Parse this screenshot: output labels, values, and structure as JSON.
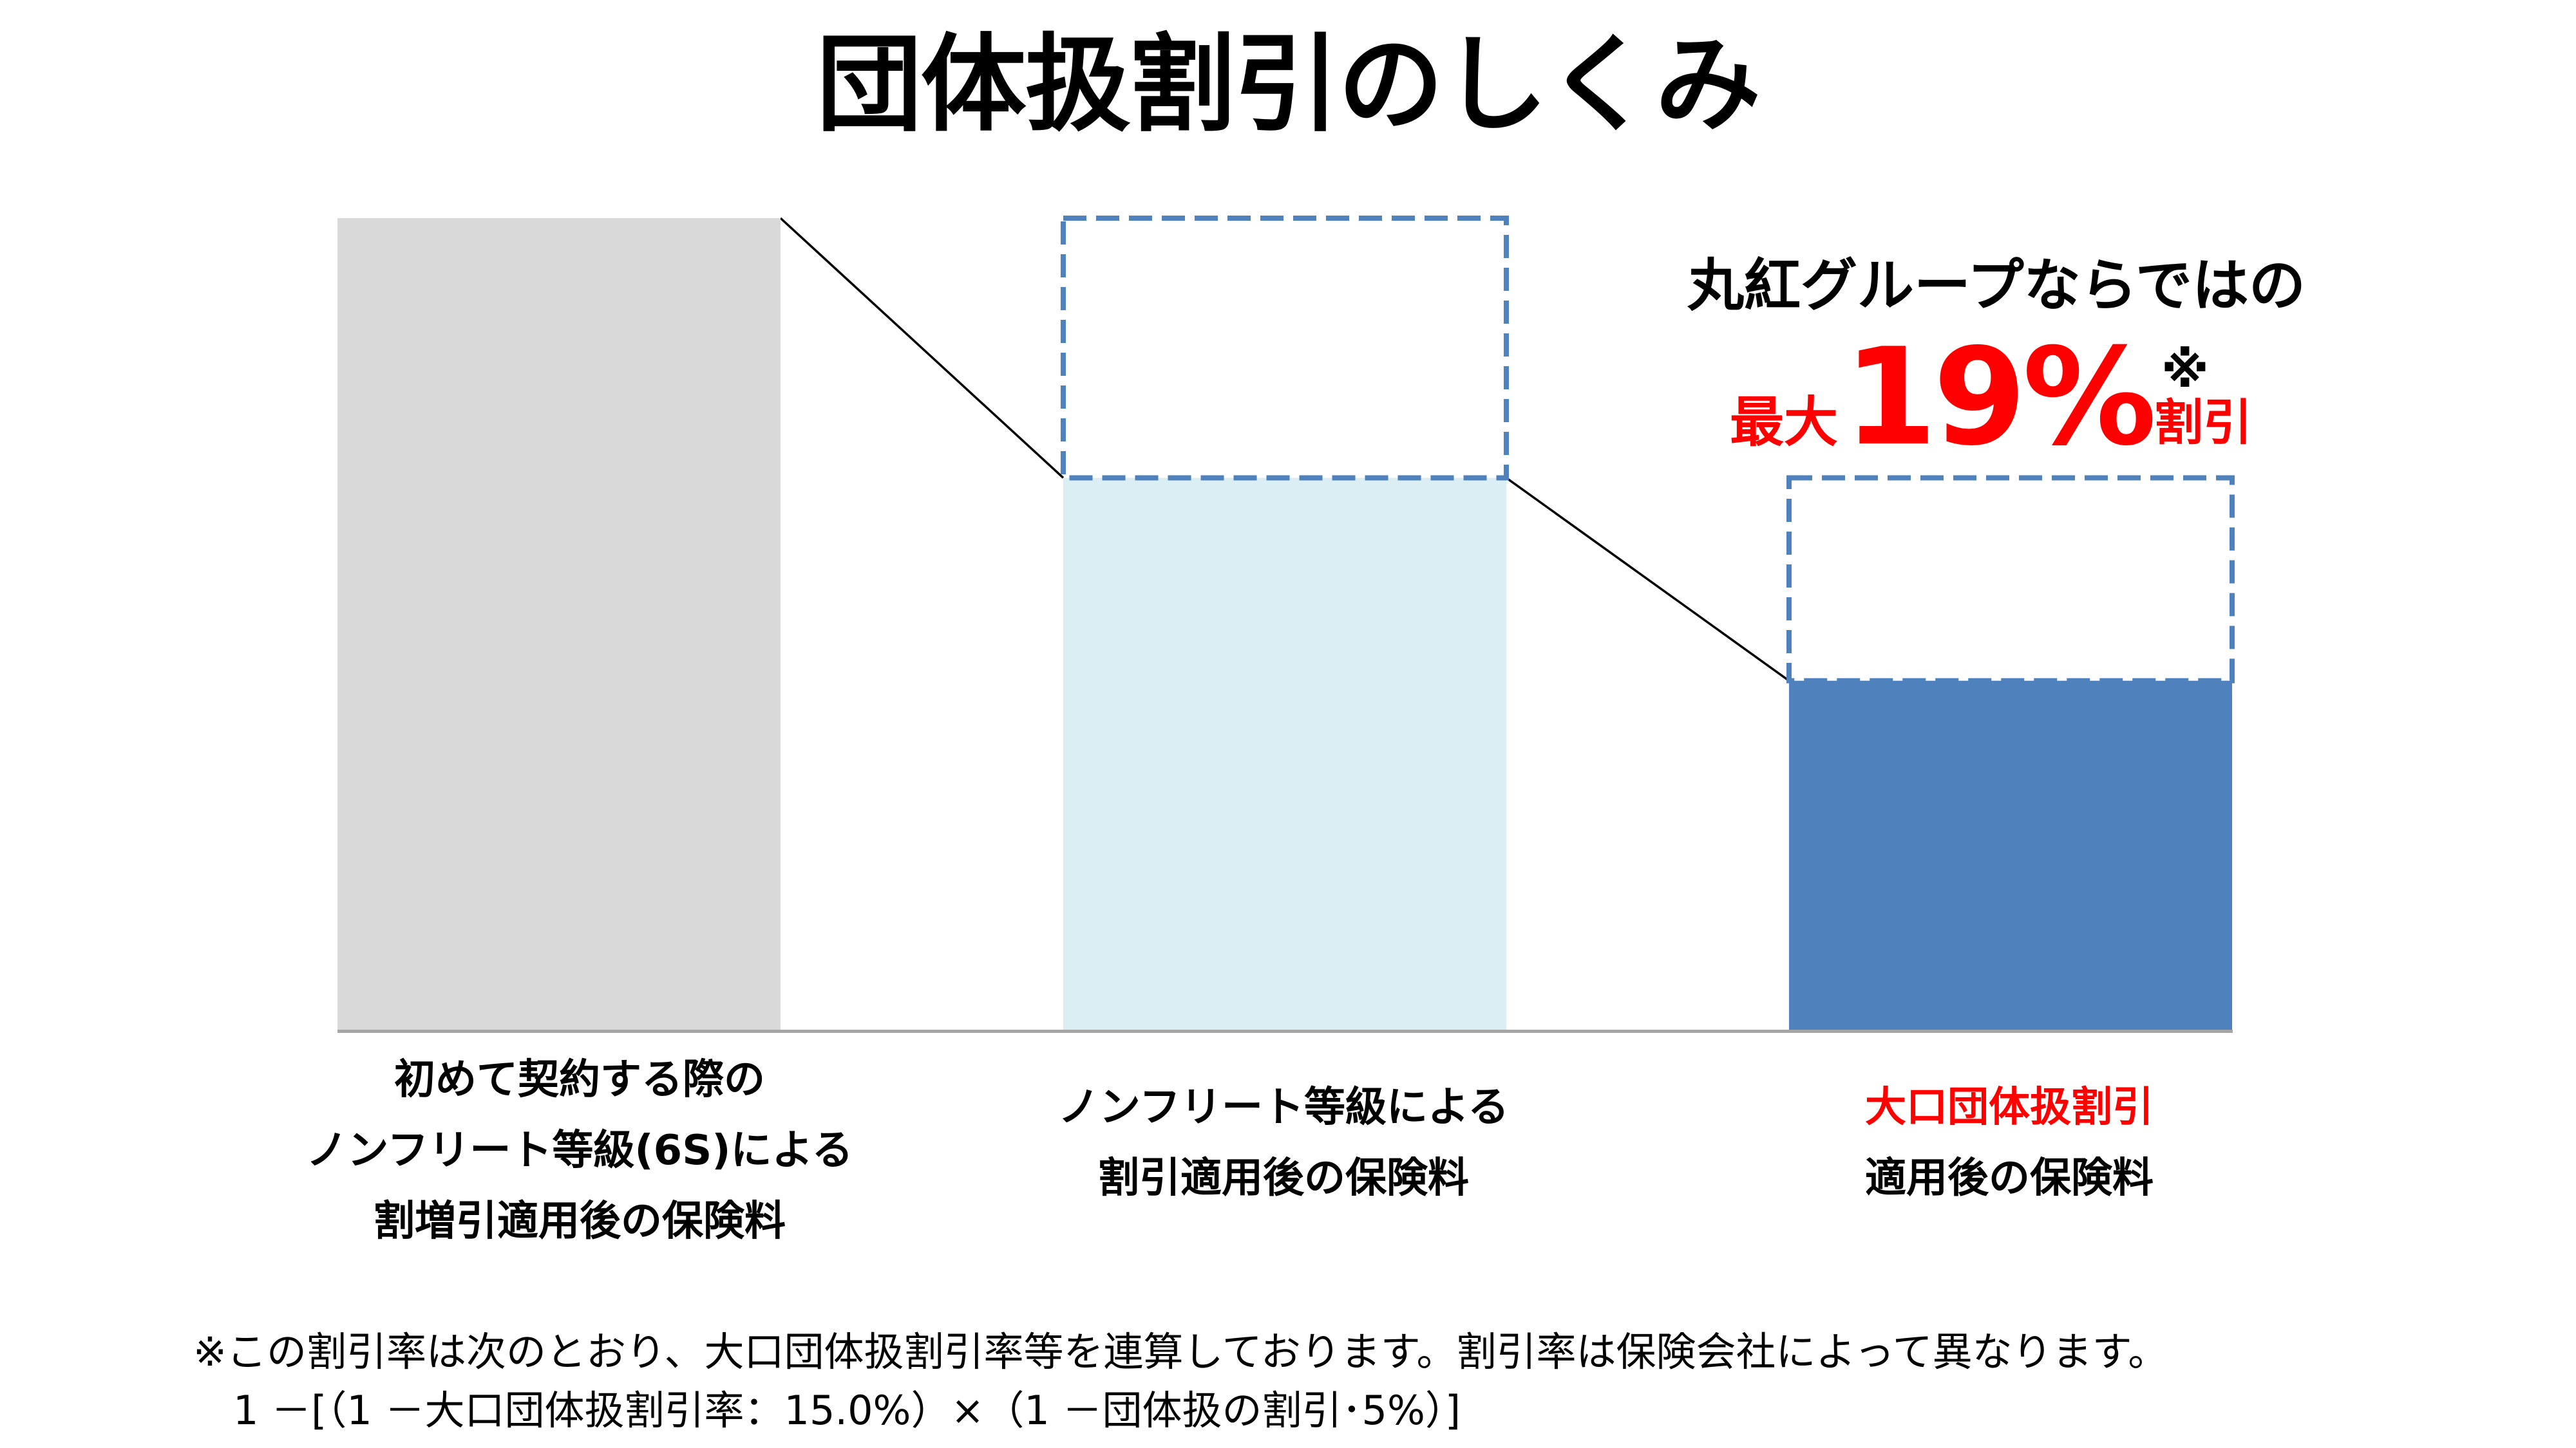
{
  "slide": {
    "title": "団体扱割引のしくみ"
  },
  "callout": {
    "headline": "丸紅グループならではの",
    "prefix": "最大",
    "value": "19%",
    "note_mark": "※",
    "suffix": "割引",
    "color": "#FF0000"
  },
  "labels": {
    "initial": {
      "lines": [
        "初めて契約する際の",
        "ノンフリート等級(6S)による",
        "割増引適用後の保険料"
      ]
    },
    "nonfleet": {
      "lines": [
        "ノンフリート等級による",
        "割引適用後の保険料"
      ]
    },
    "group": {
      "lines": [
        "大口団体扱割引",
        "適用後の保険料"
      ],
      "highlight_color": "#FF0000"
    }
  },
  "footnote": {
    "line1": "※この割引率は次のとおり、大口団体扱割引率等を連算しております。割引率は保険会社によって異なります。",
    "line2": "1 －[（1 －大口団体扱割引率：15.0%）×（1 －団体扱の割引･5%）]"
  },
  "chart_data": {
    "type": "bar",
    "title": "団体扱割引のしくみ",
    "categories": [
      "初めて契約する際のノンフリート等級(6S)による割増引適用後の保険料",
      "ノンフリート等級による割引適用後の保険料",
      "大口団体扱割引適用後の保険料"
    ],
    "values": [
      100,
      68,
      43
    ],
    "previous_level": [
      null,
      100,
      68
    ],
    "colors": [
      "#D9D9D9",
      "#DAEEF3",
      "#4F81BD"
    ],
    "outline_color": "#4F81BD",
    "connector_color": "#000000",
    "baseline_color": "#A6A6A6",
    "xlabel": "",
    "ylabel": "",
    "ylim": [
      0,
      100
    ],
    "grid": false,
    "legend": null,
    "annotations": [
      "丸紅グループならではの",
      "最大19%※割引"
    ]
  }
}
